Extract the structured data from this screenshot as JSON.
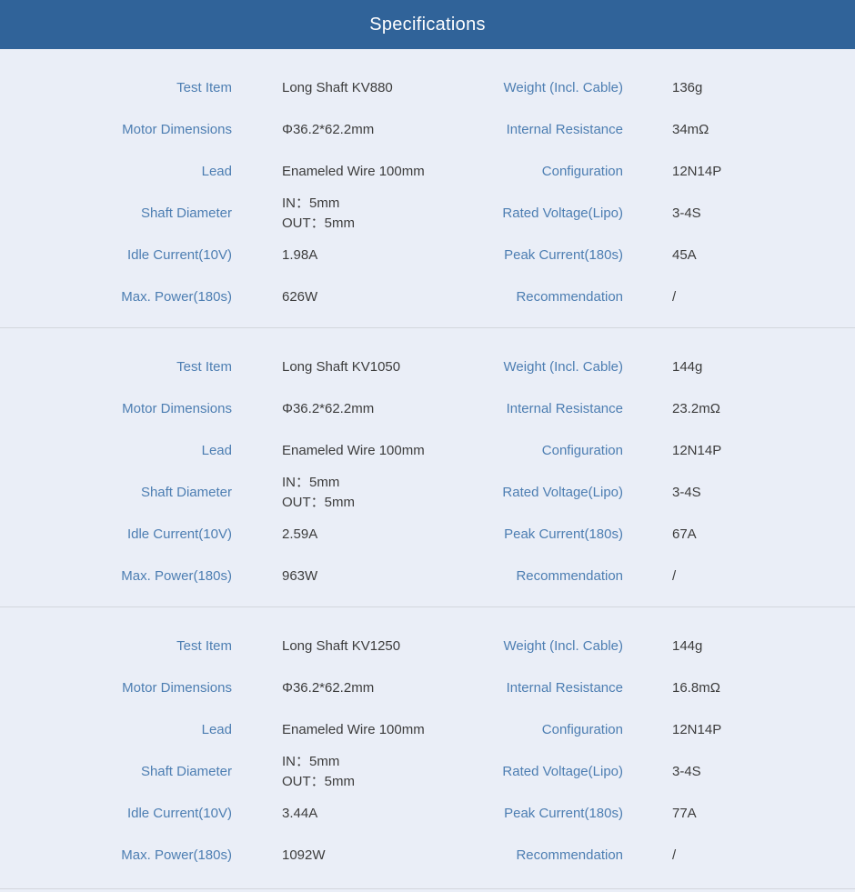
{
  "header": {
    "title": "Specifications"
  },
  "colors": {
    "header_bg": "#306399",
    "header_text": "#ffffff",
    "label_text": "#4d7eb2",
    "value_text": "#3c3c3c",
    "page_bg": "#eaeef7",
    "divider": "#d3d6dd"
  },
  "sections": [
    {
      "rows": [
        {
          "left_label": "Test Item",
          "left_value": "Long Shaft KV880",
          "right_label": "Weight (Incl. Cable)",
          "right_value": "136g"
        },
        {
          "left_label": "Motor Dimensions",
          "left_value": "Φ36.2*62.2mm",
          "right_label": "Internal Resistance",
          "right_value": "34mΩ"
        },
        {
          "left_label": "Lead",
          "left_value": "Enameled Wire 100mm",
          "right_label": "Configuration",
          "right_value": "12N14P"
        },
        {
          "left_label": "Shaft Diameter",
          "left_value": "IN：5mm\nOUT：5mm",
          "right_label": "Rated Voltage(Lipo)",
          "right_value": "3-4S"
        },
        {
          "left_label": "Idle Current(10V)",
          "left_value": "1.98A",
          "right_label": "Peak Current(180s)",
          "right_value": "45A"
        },
        {
          "left_label": "Max. Power(180s)",
          "left_value": "626W",
          "right_label": "Recommendation",
          "right_value": "/"
        }
      ]
    },
    {
      "rows": [
        {
          "left_label": "Test Item",
          "left_value": "Long Shaft KV1050",
          "right_label": "Weight (Incl. Cable)",
          "right_value": "144g"
        },
        {
          "left_label": "Motor Dimensions",
          "left_value": "Φ36.2*62.2mm",
          "right_label": "Internal Resistance",
          "right_value": "23.2mΩ"
        },
        {
          "left_label": "Lead",
          "left_value": "Enameled Wire 100mm",
          "right_label": "Configuration",
          "right_value": "12N14P"
        },
        {
          "left_label": "Shaft Diameter",
          "left_value": "IN：5mm\nOUT：5mm",
          "right_label": "Rated Voltage(Lipo)",
          "right_value": "3-4S"
        },
        {
          "left_label": "Idle Current(10V)",
          "left_value": "2.59A",
          "right_label": "Peak Current(180s)",
          "right_value": "67A"
        },
        {
          "left_label": "Max. Power(180s)",
          "left_value": "963W",
          "right_label": "Recommendation",
          "right_value": "/"
        }
      ]
    },
    {
      "rows": [
        {
          "left_label": "Test Item",
          "left_value": "Long Shaft KV1250",
          "right_label": "Weight (Incl. Cable)",
          "right_value": "144g"
        },
        {
          "left_label": "Motor Dimensions",
          "left_value": "Φ36.2*62.2mm",
          "right_label": "Internal Resistance",
          "right_value": "16.8mΩ"
        },
        {
          "left_label": "Lead",
          "left_value": "Enameled Wire 100mm",
          "right_label": "Configuration",
          "right_value": "12N14P"
        },
        {
          "left_label": "Shaft Diameter",
          "left_value": "IN：5mm\nOUT：5mm",
          "right_label": "Rated Voltage(Lipo)",
          "right_value": "3-4S"
        },
        {
          "left_label": "Idle Current(10V)",
          "left_value": "3.44A",
          "right_label": "Peak Current(180s)",
          "right_value": "77A"
        },
        {
          "left_label": "Max. Power(180s)",
          "left_value": "1092W",
          "right_label": "Recommendation",
          "right_value": "/"
        }
      ]
    }
  ]
}
